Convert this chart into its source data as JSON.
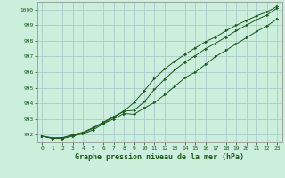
{
  "xlabel": "Graphe pression niveau de la mer (hPa)",
  "background_color": "#cceedd",
  "grid_color": "#aacccc",
  "line_color": "#1a5c1a",
  "xlim": [
    -0.5,
    23.5
  ],
  "ylim": [
    991.5,
    1000.5
  ],
  "yticks": [
    992,
    993,
    994,
    995,
    996,
    997,
    998,
    999,
    1000
  ],
  "xticks": [
    0,
    1,
    2,
    3,
    4,
    5,
    6,
    7,
    8,
    9,
    10,
    11,
    12,
    13,
    14,
    15,
    16,
    17,
    18,
    19,
    20,
    21,
    22,
    23
  ],
  "series": [
    [
      991.9,
      991.78,
      991.8,
      991.95,
      992.1,
      992.4,
      992.75,
      993.1,
      993.5,
      993.55,
      994.1,
      994.9,
      995.55,
      996.15,
      996.65,
      997.05,
      997.5,
      997.85,
      998.25,
      998.65,
      999.0,
      999.35,
      999.65,
      1000.1
    ],
    [
      991.9,
      991.75,
      991.75,
      991.9,
      992.05,
      992.3,
      992.7,
      993.0,
      993.35,
      993.3,
      993.7,
      994.05,
      994.55,
      995.1,
      995.65,
      996.0,
      996.5,
      997.0,
      997.4,
      997.8,
      998.2,
      998.6,
      998.95,
      999.4
    ],
    [
      991.9,
      991.8,
      991.8,
      992.0,
      992.15,
      992.45,
      992.8,
      993.15,
      993.5,
      994.05,
      994.8,
      995.6,
      996.2,
      996.7,
      997.15,
      997.55,
      997.95,
      998.25,
      998.65,
      999.0,
      999.3,
      999.6,
      999.85,
      1000.2
    ]
  ]
}
